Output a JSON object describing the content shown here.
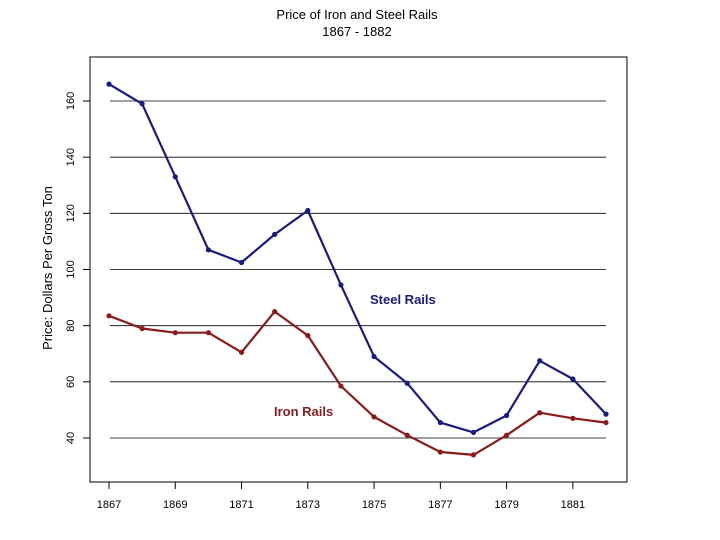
{
  "chart_data": {
    "type": "line",
    "title": "Price of Iron and Steel Rails",
    "subtitle": "1867 - 1882",
    "ylabel": "Price: Dollars Per Gross Ton",
    "xlabel": "",
    "x": [
      1867,
      1868,
      1869,
      1870,
      1871,
      1872,
      1873,
      1874,
      1875,
      1876,
      1877,
      1878,
      1879,
      1880,
      1881,
      1882
    ],
    "xticks": [
      "1867",
      "1869",
      "1871",
      "1873",
      "1875",
      "1877",
      "1879",
      "1881"
    ],
    "yticks": [
      "40",
      "60",
      "80",
      "100",
      "120",
      "140",
      "160"
    ],
    "ylim": [
      30,
      170
    ],
    "xlim": [
      1866.8,
      1882.2
    ],
    "grid": "horizontal",
    "series": [
      {
        "name": "Steel Rails",
        "label": "Steel Rails",
        "color": "#1a1a80",
        "values": [
          166,
          159,
          133,
          107,
          102.5,
          112.5,
          121,
          94.5,
          69,
          59.5,
          45.5,
          42,
          48,
          67.5,
          61,
          48.5
        ]
      },
      {
        "name": "Iron Rails",
        "label": "Iron Rails",
        "color": "#8b1a1a",
        "values": [
          83.5,
          79,
          77.5,
          77.5,
          70.5,
          85,
          76.5,
          58.5,
          47.5,
          41,
          35,
          34,
          41,
          49,
          47,
          45.5
        ]
      }
    ]
  }
}
